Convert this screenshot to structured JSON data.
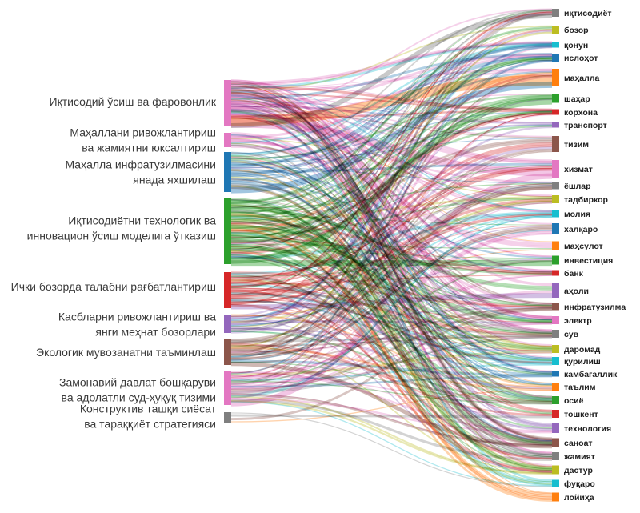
{
  "diagram": {
    "type": "sankey",
    "sources": [
      {
        "id": "s0",
        "lines": [
          "Иқтисодий ўсиш ва фаровонлик"
        ],
        "color": "#e377c2"
      },
      {
        "id": "s1",
        "lines": [
          "Маҳаллани ривожлантириш",
          "ва жамиятни юксалтириш"
        ],
        "color": "#e377c2"
      },
      {
        "id": "s2",
        "lines": [
          "Маҳалла инфратузилмасини",
          "янада яхшилаш"
        ],
        "color": "#1f77b4"
      },
      {
        "id": "s3",
        "lines": [
          "Иқтисодиётни технологик ва",
          "инновацион ўсиш моделига ўтказиш"
        ],
        "color": "#2ca02c"
      },
      {
        "id": "s4",
        "lines": [
          "Ички бозорда талабни рағбатлантириш"
        ],
        "color": "#d62728"
      },
      {
        "id": "s5",
        "lines": [
          "Касбларни ривожлантириш ва",
          "янги меҳнат бозорлари"
        ],
        "color": "#9467bd"
      },
      {
        "id": "s6",
        "lines": [
          "Экологик мувозанатни таъминлаш"
        ],
        "color": "#8c564b"
      },
      {
        "id": "s7",
        "lines": [
          "Замонавий давлат бошқаруви",
          "ва адолатли суд-ҳуқуқ тизими"
        ],
        "color": "#e377c2"
      },
      {
        "id": "s8",
        "lines": [
          "Конструктив ташқи сиёсат",
          "ва тараққиёт стратегияси"
        ],
        "color": "#7f7f7f"
      }
    ],
    "targets": [
      {
        "label": "иқтисодиёт",
        "color": "#7f7f7f"
      },
      {
        "label": "бозор",
        "color": "#bcbd22"
      },
      {
        "label": "қонун",
        "color": "#17becf"
      },
      {
        "label": "ислоҳот",
        "color": "#1f77b4"
      },
      {
        "label": "маҳалла",
        "color": "#ff7f0e"
      },
      {
        "label": "шаҳар",
        "color": "#2ca02c"
      },
      {
        "label": "корхона",
        "color": "#d62728"
      },
      {
        "label": "транспорт",
        "color": "#9467bd"
      },
      {
        "label": "тизим",
        "color": "#8c564b"
      },
      {
        "label": "хизмат",
        "color": "#e377c2"
      },
      {
        "label": "ёшлар",
        "color": "#7f7f7f"
      },
      {
        "label": "тадбиркор",
        "color": "#bcbd22"
      },
      {
        "label": "молия",
        "color": "#17becf"
      },
      {
        "label": "халқаро",
        "color": "#1f77b4"
      },
      {
        "label": "маҳсулот",
        "color": "#ff7f0e"
      },
      {
        "label": "инвестиция",
        "color": "#2ca02c"
      },
      {
        "label": "банк",
        "color": "#d62728"
      },
      {
        "label": "аҳоли",
        "color": "#9467bd"
      },
      {
        "label": "инфратузилма",
        "color": "#8c564b"
      },
      {
        "label": "электр",
        "color": "#e377c2"
      },
      {
        "label": "сув",
        "color": "#7f7f7f"
      },
      {
        "label": "даромад",
        "color": "#bcbd22"
      },
      {
        "label": "қурилиш",
        "color": "#17becf"
      },
      {
        "label": "камбағаллик",
        "color": "#1f77b4"
      },
      {
        "label": "таълим",
        "color": "#ff7f0e"
      },
      {
        "label": "осиё",
        "color": "#2ca02c"
      },
      {
        "label": "тошкент",
        "color": "#d62728"
      },
      {
        "label": "технология",
        "color": "#9467bd"
      },
      {
        "label": "саноат",
        "color": "#8c564b"
      },
      {
        "label": "жамият",
        "color": "#7f7f7f"
      },
      {
        "label": "дастур",
        "color": "#bcbd22"
      },
      {
        "label": "фуқаро",
        "color": "#17becf"
      },
      {
        "label": "лойиҳа",
        "color": "#ff7f0e"
      }
    ]
  }
}
